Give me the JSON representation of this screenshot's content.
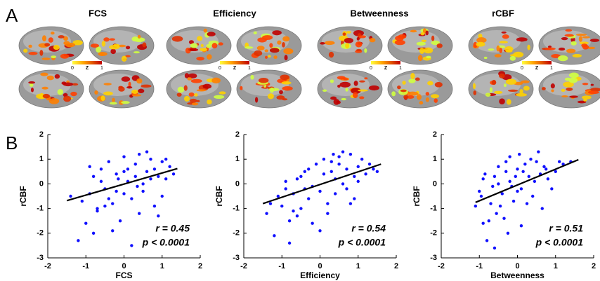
{
  "panel_a": {
    "label": "A",
    "maps": [
      {
        "title": "FCS",
        "colorbar": [
          "0",
          "Z",
          "1"
        ]
      },
      {
        "title": "Efficiency",
        "colorbar": [
          "0",
          "Z",
          "1"
        ]
      },
      {
        "title": "Betweenness",
        "colorbar": [
          "0",
          "Z",
          "1"
        ]
      },
      {
        "title": "rCBF",
        "colorbar": [
          "0",
          "Z",
          "1"
        ]
      }
    ]
  },
  "panel_b_label": "B",
  "chart_data": [
    {
      "type": "scatter",
      "x_label": "FCS",
      "y_label": "rCBF",
      "color": "#1010ff",
      "xlim": [
        -2,
        2
      ],
      "ylim": [
        -3,
        2
      ],
      "xticks": [
        -2,
        -1,
        0,
        1,
        2
      ],
      "yticks": [
        -3,
        -2,
        -1,
        0,
        1,
        2
      ],
      "annotations": [
        "r = 0.45",
        "p < 0.0001"
      ],
      "x": [
        -1.2,
        -1.0,
        -0.9,
        -0.8,
        -0.7,
        -0.6,
        -0.5,
        -0.4,
        -0.3,
        -0.2,
        -0.1,
        0,
        0.1,
        0.2,
        0.3,
        0.4,
        0.5,
        0.6,
        0.7,
        0.8,
        0.9,
        1.0,
        1.1,
        1.2,
        -0.8,
        -0.5,
        -0.2,
        0.1,
        0.4,
        0.7,
        1.0,
        -1.1,
        -0.6,
        -0.3,
        0,
        0.3,
        0.6,
        0.9,
        1.3,
        -0.9,
        -0.4,
        0.2,
        0.5,
        0.8,
        -1.4,
        -0.7,
        0.0,
        0.35,
        1.1,
        -0.15
      ],
      "values": [
        -2.3,
        -1.6,
        -0.4,
        0.3,
        -1.1,
        0.6,
        -0.2,
        0.9,
        -0.8,
        0.4,
        -1.5,
        1.1,
        0.1,
        -0.6,
        0.8,
        1.2,
        -0.3,
        0.5,
        1.0,
        -0.9,
        0.3,
        0.9,
        0.2,
        0.7,
        -2.0,
        -0.9,
        -0.3,
        0.6,
        -1.2,
        0.2,
        -0.5,
        -0.7,
        0.1,
        -1.9,
        -0.4,
        0.3,
        1.3,
        -1.3,
        0.4,
        0.7,
        -0.6,
        -2.5,
        0.0,
        0.6,
        -0.5,
        -1.0,
        0.5,
        -0.1,
        1.0,
        0.2
      ],
      "fit_line": {
        "x": [
          -1.5,
          1.4
        ],
        "y": [
          -0.68,
          0.62
        ]
      }
    },
    {
      "type": "scatter",
      "x_label": "Efficiency",
      "y_label": "rCBF",
      "color": "#1010ff",
      "xlim": [
        -2,
        2
      ],
      "ylim": [
        -3,
        2
      ],
      "xticks": [
        -2,
        -1,
        0,
        1,
        2
      ],
      "yticks": [
        -3,
        -2,
        -1,
        0,
        1,
        2
      ],
      "annotations": [
        "r = 0.54",
        "p < 0.0001"
      ],
      "x": [
        -1.4,
        -1.2,
        -1.0,
        -0.9,
        -0.8,
        -0.7,
        -0.6,
        -0.5,
        -0.4,
        -0.3,
        -0.2,
        -0.1,
        0,
        0.1,
        0.2,
        0.3,
        0.4,
        0.5,
        0.6,
        0.7,
        0.8,
        0.9,
        1.0,
        1.1,
        1.2,
        1.3,
        -0.8,
        -0.5,
        -0.2,
        0.1,
        0.4,
        0.7,
        1.0,
        -1.1,
        -0.6,
        -0.3,
        0,
        0.3,
        0.6,
        0.9,
        1.4,
        -0.9,
        -0.4,
        0.2,
        0.5,
        0.8,
        -1.3,
        -0.7,
        0.35,
        1.5
      ],
      "values": [
        -1.2,
        -2.1,
        -0.9,
        -0.2,
        -1.5,
        -0.4,
        0.2,
        -1.0,
        0.5,
        -0.6,
        -0.1,
        0.8,
        -0.3,
        0.4,
        -0.8,
        0.9,
        0.2,
        1.1,
        0.0,
        0.6,
        1.2,
        0.3,
        0.7,
        1.0,
        0.4,
        0.8,
        -2.4,
        0.3,
        -1.6,
        1.0,
        -0.4,
        -0.2,
        0.1,
        -0.5,
        -1.3,
        0.6,
        -1.9,
        0.5,
        1.3,
        -0.6,
        0.6,
        0.1,
        -0.2,
        -1.2,
        0.8,
        -0.8,
        -0.8,
        -1.1,
        1.2,
        0.5
      ],
      "fit_line": {
        "x": [
          -1.5,
          1.6
        ],
        "y": [
          -0.8,
          0.8
        ]
      }
    },
    {
      "type": "scatter",
      "x_label": "Betweenness",
      "y_label": "rCBF",
      "color": "#1010ff",
      "xlim": [
        -2,
        2
      ],
      "ylim": [
        -3,
        2
      ],
      "xticks": [
        -2,
        -1,
        0,
        1,
        2
      ],
      "yticks": [
        -3,
        -2,
        -1,
        0,
        1,
        2
      ],
      "annotations": [
        "r = 0.51",
        "p < 0.0001"
      ],
      "x": [
        -1.1,
        -1.0,
        -0.9,
        -0.85,
        -0.8,
        -0.7,
        -0.6,
        -0.55,
        -0.5,
        -0.4,
        -0.3,
        -0.25,
        -0.2,
        -0.1,
        0,
        0.05,
        0.1,
        0.2,
        0.3,
        0.4,
        0.5,
        0.6,
        0.7,
        0.8,
        1.0,
        1.2,
        -0.75,
        -0.45,
        -0.15,
        0.15,
        0.45,
        0.9,
        -0.95,
        -0.65,
        -0.35,
        -0.05,
        0.25,
        0.55,
        1.1,
        -0.6,
        -0.3,
        0.0,
        0.35,
        0.65,
        -0.9,
        -0.5,
        0.1,
        0.75,
        1.4,
        -0.2
      ],
      "values": [
        -0.9,
        -0.3,
        -1.6,
        0.4,
        -2.3,
        -0.8,
        0.3,
        -1.2,
        0.7,
        -0.4,
        0.9,
        -2.0,
        0.1,
        -0.7,
        0.6,
        1.2,
        -0.2,
        0.8,
        0.3,
        -0.5,
        0.9,
        0.4,
        0.7,
        0.2,
        0.5,
        0.8,
        -1.5,
        -0.9,
        -0.1,
        0.5,
        0.1,
        -0.2,
        -0.5,
        -0.1,
        -1.4,
        0.3,
        -0.8,
        1.3,
        0.9,
        -2.6,
        0.5,
        -0.3,
        1.0,
        -1.0,
        0.2,
        0.0,
        -1.7,
        0.6,
        0.9,
        1.1
      ],
      "fit_line": {
        "x": [
          -1.1,
          1.6
        ],
        "y": [
          -0.75,
          0.98
        ]
      }
    }
  ]
}
